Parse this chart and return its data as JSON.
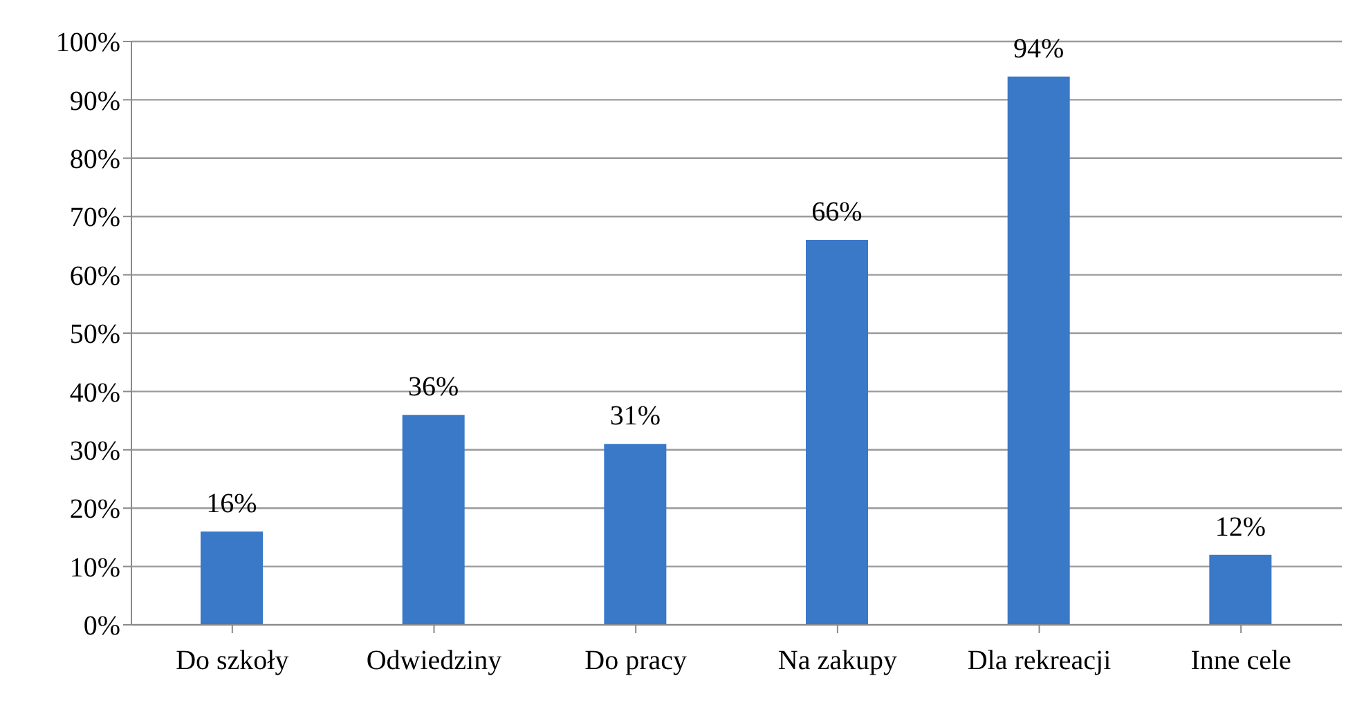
{
  "chart_data": {
    "type": "bar",
    "categories": [
      "Do szkoły",
      "Odwiedziny",
      "Do pracy",
      "Na zakupy",
      "Dla rekreacji",
      "Inne cele"
    ],
    "values": [
      16,
      36,
      31,
      66,
      94,
      12
    ],
    "value_labels": [
      "16%",
      "36%",
      "31%",
      "66%",
      "94%",
      "12%"
    ],
    "color": "#3a78c8",
    "ylim": [
      0,
      100
    ],
    "yticks": [
      {
        "value": 0,
        "label": "0%"
      },
      {
        "value": 10,
        "label": "10%"
      },
      {
        "value": 20,
        "label": "20%"
      },
      {
        "value": 30,
        "label": "30%"
      },
      {
        "value": 40,
        "label": "40%"
      },
      {
        "value": 50,
        "label": "50%"
      },
      {
        "value": 60,
        "label": "60%"
      },
      {
        "value": 70,
        "label": "70%"
      },
      {
        "value": 80,
        "label": "80%"
      },
      {
        "value": 90,
        "label": "90%"
      },
      {
        "value": 100,
        "label": "100%"
      }
    ],
    "grid": "y"
  }
}
